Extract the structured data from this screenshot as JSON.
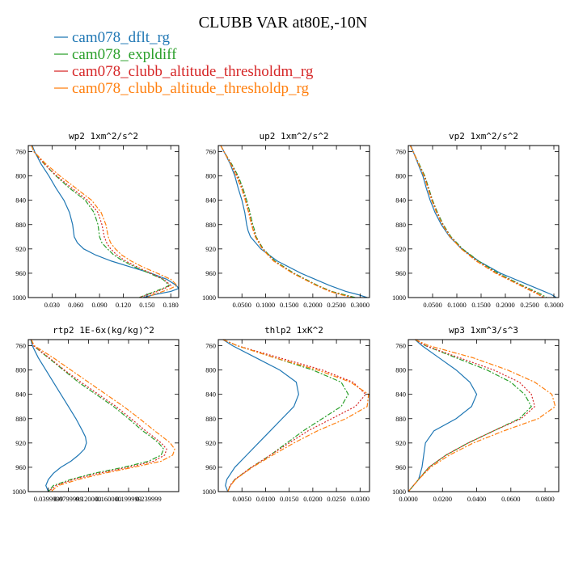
{
  "figure": {
    "title": "CLUBB VAR at80E,-10N"
  },
  "legend": [
    {
      "label": "cam078_dflt_rg",
      "color": "#1f77b4",
      "dash": "solid"
    },
    {
      "label": "cam078_expldiff",
      "color": "#2ca02c",
      "dash": "dashdot"
    },
    {
      "label": "cam078_clubb_altitude_thresholdm_rg",
      "color": "#d62728",
      "dash": "dot"
    },
    {
      "label": "cam078_clubb_altitude_thresholdp_rg",
      "color": "#ff7f0e",
      "dash": "dashdot"
    }
  ],
  "chart_data": [
    {
      "type": "line",
      "title": "wp2  1xm^2/s^2",
      "ylim": [
        1000,
        750
      ],
      "xlim": [
        0.0,
        0.19
      ],
      "yticks": [
        "760",
        "800",
        "840",
        "880",
        "920",
        "960",
        "1000"
      ],
      "ytick_values": [
        760,
        800,
        840,
        880,
        920,
        960,
        1000
      ],
      "xticks": [
        "0.030",
        "0.060",
        "0.090",
        "0.120",
        "0.150",
        "0.180"
      ],
      "xtick_values": [
        0.03,
        0.06,
        0.09,
        0.12,
        0.15,
        0.18
      ],
      "y": [
        750,
        760,
        780,
        800,
        820,
        840,
        860,
        880,
        900,
        910,
        920,
        930,
        940,
        950,
        960,
        970,
        980,
        985,
        990,
        995,
        1000
      ],
      "series": [
        {
          "values": [
            0.005,
            0.008,
            0.016,
            0.026,
            0.035,
            0.045,
            0.052,
            0.056,
            0.058,
            0.062,
            0.07,
            0.085,
            0.105,
            0.13,
            0.155,
            0.175,
            0.187,
            0.19,
            0.18,
            0.16,
            0.145
          ]
        },
        {
          "values": [
            0.004,
            0.007,
            0.02,
            0.035,
            0.052,
            0.072,
            0.083,
            0.088,
            0.09,
            0.093,
            0.1,
            0.108,
            0.12,
            0.135,
            0.153,
            0.17,
            0.178,
            0.17,
            0.16,
            0.15,
            0.14
          ]
        },
        {
          "values": [
            0.004,
            0.007,
            0.02,
            0.036,
            0.055,
            0.075,
            0.088,
            0.093,
            0.096,
            0.099,
            0.104,
            0.112,
            0.123,
            0.138,
            0.155,
            0.171,
            0.18,
            0.172,
            0.163,
            0.152,
            0.14
          ]
        },
        {
          "values": [
            0.004,
            0.007,
            0.022,
            0.04,
            0.06,
            0.08,
            0.092,
            0.098,
            0.101,
            0.104,
            0.11,
            0.118,
            0.13,
            0.145,
            0.163,
            0.18,
            0.188,
            0.18,
            0.17,
            0.158,
            0.15
          ]
        }
      ]
    },
    {
      "type": "line",
      "title": "up2  1xm^2/s^2",
      "ylim": [
        1000,
        750
      ],
      "xlim": [
        0.0,
        0.32
      ],
      "yticks": [
        "760",
        "800",
        "840",
        "880",
        "920",
        "960",
        "1000"
      ],
      "ytick_values": [
        760,
        800,
        840,
        880,
        920,
        960,
        1000
      ],
      "xticks": [
        "0.0500",
        "0.1000",
        "0.1500",
        "0.2000",
        "0.2500",
        "0.3000"
      ],
      "xtick_values": [
        0.05,
        0.1,
        0.15,
        0.2,
        0.25,
        0.3
      ],
      "y": [
        750,
        760,
        780,
        800,
        820,
        840,
        860,
        880,
        890,
        900,
        920,
        940,
        960,
        970,
        980,
        990,
        995,
        1000
      ],
      "series": [
        {
          "values": [
            0.005,
            0.012,
            0.025,
            0.035,
            0.042,
            0.05,
            0.056,
            0.06,
            0.063,
            0.068,
            0.09,
            0.125,
            0.175,
            0.205,
            0.235,
            0.27,
            0.295,
            0.315
          ]
        },
        {
          "values": [
            0.005,
            0.012,
            0.028,
            0.042,
            0.052,
            0.06,
            0.067,
            0.073,
            0.077,
            0.08,
            0.095,
            0.12,
            0.16,
            0.185,
            0.21,
            0.24,
            0.265,
            0.29
          ]
        },
        {
          "values": [
            0.005,
            0.012,
            0.027,
            0.04,
            0.05,
            0.058,
            0.065,
            0.071,
            0.075,
            0.079,
            0.094,
            0.118,
            0.158,
            0.183,
            0.208,
            0.238,
            0.26,
            0.285
          ]
        },
        {
          "values": [
            0.005,
            0.012,
            0.026,
            0.038,
            0.049,
            0.057,
            0.064,
            0.07,
            0.074,
            0.078,
            0.093,
            0.117,
            0.157,
            0.182,
            0.207,
            0.236,
            0.258,
            0.283
          ]
        }
      ]
    },
    {
      "type": "line",
      "title": "vp2  1xm^2/s^2",
      "ylim": [
        1000,
        750
      ],
      "xlim": [
        0.0,
        0.31
      ],
      "yticks": [
        "760",
        "800",
        "840",
        "880",
        "920",
        "960",
        "1000"
      ],
      "ytick_values": [
        760,
        800,
        840,
        880,
        920,
        960,
        1000
      ],
      "xticks": [
        "0.0500",
        "0.1000",
        "0.1500",
        "0.2000",
        "0.2500",
        "0.3000"
      ],
      "xtick_values": [
        0.05,
        0.1,
        0.15,
        0.2,
        0.25,
        0.3
      ],
      "y": [
        750,
        760,
        780,
        800,
        820,
        840,
        860,
        880,
        900,
        920,
        940,
        960,
        970,
        980,
        990,
        995,
        1000
      ],
      "series": [
        {
          "values": [
            0.005,
            0.01,
            0.02,
            0.03,
            0.037,
            0.045,
            0.055,
            0.068,
            0.085,
            0.11,
            0.145,
            0.19,
            0.22,
            0.25,
            0.28,
            0.295,
            0.305
          ]
        },
        {
          "values": [
            0.004,
            0.01,
            0.022,
            0.034,
            0.042,
            0.05,
            0.06,
            0.072,
            0.088,
            0.112,
            0.145,
            0.185,
            0.21,
            0.235,
            0.262,
            0.275,
            0.285
          ]
        },
        {
          "values": [
            0.004,
            0.01,
            0.021,
            0.033,
            0.041,
            0.049,
            0.059,
            0.071,
            0.087,
            0.11,
            0.142,
            0.182,
            0.207,
            0.232,
            0.258,
            0.27,
            0.28
          ]
        },
        {
          "values": [
            0.004,
            0.01,
            0.021,
            0.032,
            0.04,
            0.048,
            0.058,
            0.07,
            0.086,
            0.109,
            0.14,
            0.18,
            0.205,
            0.23,
            0.255,
            0.268,
            0.278
          ]
        }
      ]
    },
    {
      "type": "line",
      "title": "rtp2  1E-6x(kg/kg)^2",
      "ylim": [
        1000,
        750
      ],
      "xlim": [
        0.0,
        0.3
      ],
      "yticks": [
        "760",
        "800",
        "840",
        "880",
        "920",
        "960",
        "1000"
      ],
      "ytick_values": [
        760,
        800,
        840,
        880,
        920,
        960,
        1000
      ],
      "xticks": [
        "0.0399999",
        "0.0799999",
        "0.120000",
        "0.160000",
        "0.199999",
        "0.239999"
      ],
      "xtick_values": [
        0.04,
        0.08,
        0.12,
        0.16,
        0.2,
        0.24
      ],
      "y": [
        750,
        760,
        780,
        800,
        820,
        840,
        860,
        880,
        900,
        910,
        920,
        930,
        940,
        950,
        960,
        970,
        980,
        990,
        1000
      ],
      "series": [
        {
          "values": [
            0.005,
            0.008,
            0.02,
            0.035,
            0.05,
            0.065,
            0.08,
            0.095,
            0.108,
            0.114,
            0.116,
            0.112,
            0.1,
            0.085,
            0.065,
            0.05,
            0.04,
            0.035,
            0.04
          ]
        },
        {
          "values": [
            0.006,
            0.01,
            0.04,
            0.07,
            0.1,
            0.135,
            0.17,
            0.2,
            0.228,
            0.245,
            0.26,
            0.27,
            0.265,
            0.24,
            0.19,
            0.13,
            0.085,
            0.05,
            0.04
          ]
        },
        {
          "values": [
            0.006,
            0.01,
            0.042,
            0.072,
            0.105,
            0.14,
            0.175,
            0.205,
            0.234,
            0.25,
            0.265,
            0.276,
            0.272,
            0.25,
            0.2,
            0.14,
            0.09,
            0.055,
            0.04
          ]
        },
        {
          "values": [
            0.006,
            0.012,
            0.05,
            0.085,
            0.12,
            0.155,
            0.19,
            0.222,
            0.252,
            0.268,
            0.283,
            0.292,
            0.288,
            0.265,
            0.21,
            0.15,
            0.1,
            0.06,
            0.045
          ]
        }
      ]
    },
    {
      "type": "line",
      "title": "thlp2  1xK^2",
      "ylim": [
        1000,
        750
      ],
      "xlim": [
        0.0,
        0.032
      ],
      "yticks": [
        "760",
        "800",
        "840",
        "880",
        "920",
        "960",
        "1000"
      ],
      "ytick_values": [
        760,
        800,
        840,
        880,
        920,
        960,
        1000
      ],
      "xticks": [
        "0.0050",
        "0.0100",
        "0.0150",
        "0.0200",
        "0.0250",
        "0.0300"
      ],
      "xtick_values": [
        0.005,
        0.01,
        0.015,
        0.02,
        0.025,
        0.03
      ],
      "y": [
        750,
        760,
        780,
        800,
        820,
        840,
        860,
        880,
        900,
        920,
        940,
        960,
        980,
        990,
        1000
      ],
      "series": [
        {
          "values": [
            0.001,
            0.003,
            0.008,
            0.013,
            0.0165,
            0.017,
            0.016,
            0.0135,
            0.011,
            0.0085,
            0.006,
            0.0035,
            0.0018,
            0.0015,
            0.002
          ]
        },
        {
          "values": [
            0.001,
            0.004,
            0.012,
            0.02,
            0.026,
            0.0275,
            0.026,
            0.022,
            0.018,
            0.0145,
            0.011,
            0.007,
            0.0035,
            0.0025,
            0.002
          ]
        },
        {
          "values": [
            0.001,
            0.004,
            0.013,
            0.022,
            0.0285,
            0.0312,
            0.029,
            0.024,
            0.019,
            0.015,
            0.011,
            0.007,
            0.0035,
            0.0025,
            0.002
          ]
        },
        {
          "values": [
            0.001,
            0.004,
            0.012,
            0.021,
            0.028,
            0.0318,
            0.0315,
            0.027,
            0.021,
            0.016,
            0.0115,
            0.0072,
            0.0036,
            0.0026,
            0.002
          ]
        }
      ]
    },
    {
      "type": "line",
      "title": "wp3  1xm^3/s^3",
      "ylim": [
        1000,
        750
      ],
      "xlim": [
        0.0,
        0.088
      ],
      "yticks": [
        "760",
        "800",
        "840",
        "880",
        "920",
        "960",
        "1000"
      ],
      "ytick_values": [
        760,
        800,
        840,
        880,
        920,
        960,
        1000
      ],
      "xticks": [
        "0.0000",
        "0.0200",
        "0.0400",
        "0.0600",
        "0.0800"
      ],
      "xtick_values": [
        0.0,
        0.02,
        0.04,
        0.06,
        0.08
      ],
      "y": [
        750,
        760,
        780,
        800,
        820,
        840,
        860,
        880,
        900,
        920,
        940,
        960,
        980,
        990,
        1000
      ],
      "series": [
        {
          "values": [
            0.004,
            0.008,
            0.018,
            0.028,
            0.036,
            0.04,
            0.037,
            0.028,
            0.015,
            0.01,
            0.009,
            0.008,
            0.006,
            0.003,
            0.0
          ]
        },
        {
          "values": [
            0.004,
            0.01,
            0.028,
            0.046,
            0.06,
            0.068,
            0.072,
            0.065,
            0.05,
            0.035,
            0.022,
            0.012,
            0.006,
            0.003,
            0.0
          ]
        },
        {
          "values": [
            0.004,
            0.01,
            0.03,
            0.05,
            0.065,
            0.072,
            0.074,
            0.066,
            0.05,
            0.035,
            0.022,
            0.012,
            0.006,
            0.003,
            0.0
          ]
        },
        {
          "values": [
            0.004,
            0.012,
            0.038,
            0.058,
            0.074,
            0.084,
            0.086,
            0.076,
            0.056,
            0.038,
            0.024,
            0.013,
            0.006,
            0.003,
            0.0
          ]
        }
      ]
    }
  ]
}
